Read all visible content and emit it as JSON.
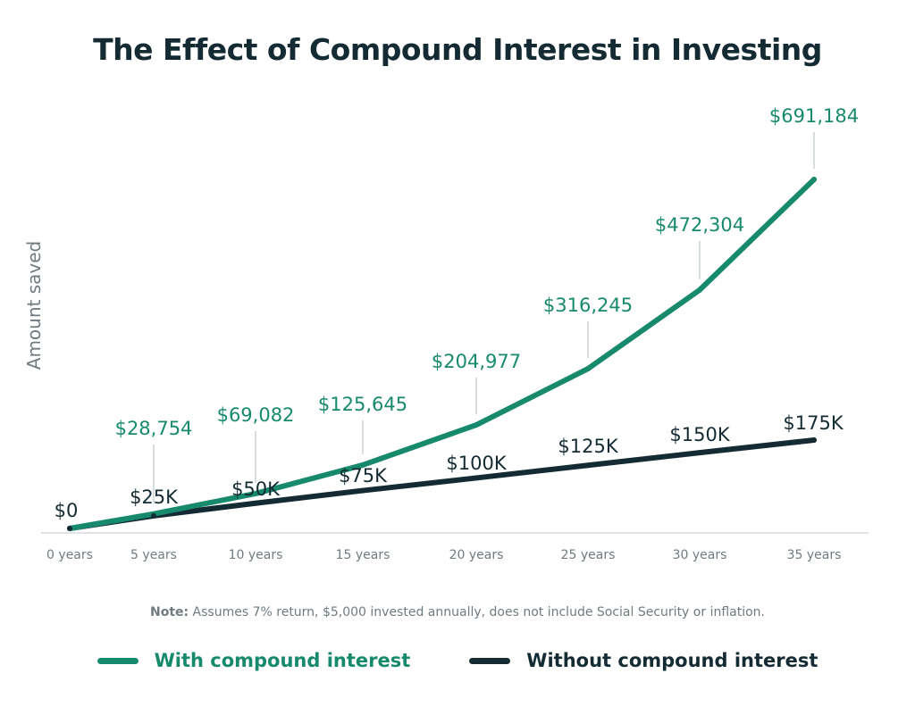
{
  "chart_data": {
    "type": "line",
    "title": "The Effect of Compound Interest in Investing",
    "ylabel": "Amount saved",
    "xlabel": "",
    "categories": [
      "0 years",
      "5 years",
      "10 years",
      "15 years",
      "20 years",
      "25 years",
      "30 years",
      "35 years"
    ],
    "series": [
      {
        "name": "With compound interest",
        "color": "#178a6e",
        "values": [
          0,
          28754,
          69082,
          125645,
          204977,
          316245,
          472304,
          691184
        ],
        "labels": [
          "$0",
          "$28,754",
          "$69,082",
          "$125,645",
          "$204,977",
          "$316,245",
          "$472,304",
          "$691,184"
        ]
      },
      {
        "name": "Without compound interest",
        "color": "#142b33",
        "values": [
          0,
          25000,
          50000,
          75000,
          100000,
          125000,
          150000,
          175000
        ],
        "labels": [
          "$0",
          "$25K",
          "$50K",
          "$75K",
          "$100K",
          "$125K",
          "$150K",
          "$175K"
        ]
      }
    ],
    "ylim": [
      0,
      691184
    ],
    "grid": false,
    "legend_position": "bottom"
  },
  "note": {
    "prefix": "Note:",
    "text": " Assumes 7% return, $5,000 invested annually, does not include Social Security or inflation."
  },
  "colors": {
    "title": "#142b33",
    "axis_text": "#6f7b80",
    "connector": "#d7dcdd",
    "axis_line": "#dfe3e4"
  }
}
